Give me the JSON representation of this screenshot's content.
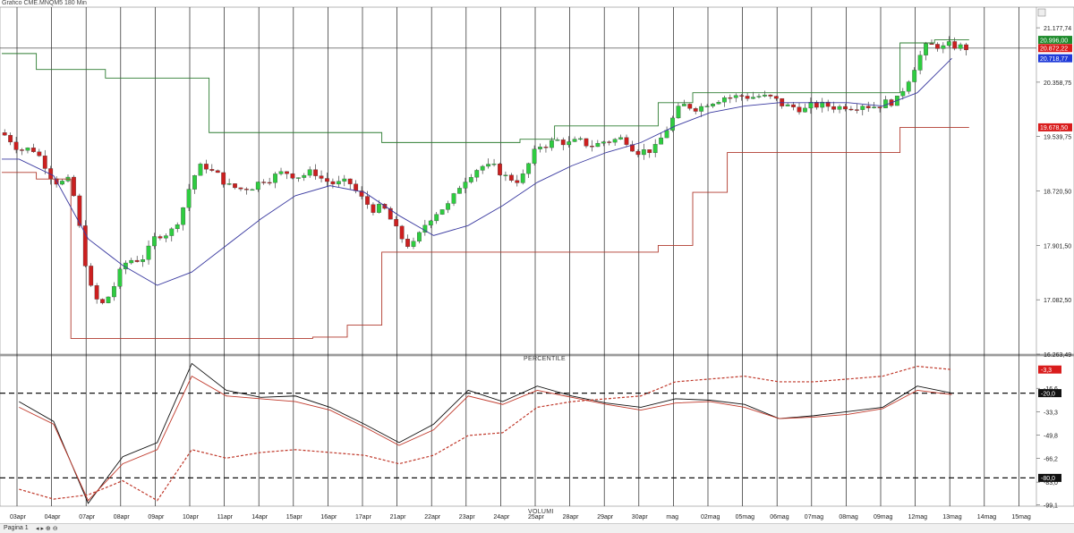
{
  "window": {
    "title": "Grafico CME.MNQM5 180 Min",
    "page_label": "Pagina 1"
  },
  "panels": {
    "oscillator_label": "PERCENTILE",
    "volume_label": "VOLUMI"
  },
  "colors": {
    "up_candle": "#2ecc40",
    "down_candle": "#cc1f1f",
    "upper_channel": "#2e7d32",
    "lower_channel": "#b03a2e",
    "moving_average": "#3a3aa0",
    "badge_green": "#1e8b2c",
    "badge_red": "#d91c1c",
    "badge_blue": "#1f3ad9"
  },
  "chart_data": [
    {
      "type": "candlestick",
      "symbol": "CME.MNQM5",
      "timeframe": "180 Min",
      "x_labels": [
        "03apr",
        "04apr",
        "07apr",
        "08apr",
        "09apr",
        "10apr",
        "11apr",
        "14apr",
        "15apr",
        "16apr",
        "17apr",
        "21apr",
        "22apr",
        "23apr",
        "24apr",
        "25apr",
        "28apr",
        "29apr",
        "30apr",
        "mag",
        "02mag",
        "05mag",
        "06mag",
        "07mag",
        "08mag",
        "09mag",
        "12mag",
        "13mag",
        "14mag",
        "15mag"
      ],
      "y_ticks": [
        "21.177,74",
        "20.358,75",
        "19.539,75",
        "18.720,50",
        "17.901,50",
        "17.082,50",
        "16.263,49"
      ],
      "ylim": [
        16263.49,
        21300
      ],
      "price_badges": [
        {
          "label": "20.996,00",
          "value": 20996,
          "color": "green"
        },
        {
          "label": "20.872,22",
          "value": 20872.22,
          "color": "red"
        },
        {
          "label": "20.718,77",
          "value": 20718.77,
          "color": "blue"
        },
        {
          "label": "19.678,50",
          "value": 19678.5,
          "color": "red"
        }
      ],
      "session_closes": [
        19350,
        18850,
        17000,
        17700,
        18120,
        19100,
        18750,
        18950,
        18980,
        18820,
        18450,
        17900,
        18500,
        19100,
        18900,
        19450,
        19430,
        19500,
        19350,
        20000,
        20150,
        20150,
        19980,
        20000,
        20050,
        20080,
        20900,
        20880
      ],
      "upper_channel": [
        20790,
        20550,
        20550,
        20420,
        20420,
        20420,
        19600,
        19600,
        19600,
        19600,
        19600,
        19450,
        19450,
        19450,
        19450,
        19500,
        19700,
        19700,
        19700,
        20050,
        20200,
        20200,
        20200,
        20200,
        20200,
        20200,
        20950,
        20996
      ],
      "lower_channel": [
        19000,
        18900,
        16500,
        16500,
        16500,
        16500,
        16500,
        16500,
        16500,
        16520,
        16700,
        17800,
        17800,
        17800,
        17800,
        17800,
        17800,
        17800,
        17800,
        17900,
        18700,
        19300,
        19300,
        19300,
        19300,
        19300,
        19678.5,
        19678.5
      ],
      "moving_average": [
        19200,
        18950,
        18000,
        17600,
        17300,
        17500,
        17900,
        18300,
        18650,
        18800,
        18700,
        18350,
        18050,
        18200,
        18500,
        18850,
        19100,
        19300,
        19450,
        19700,
        19900,
        20000,
        20050,
        20050,
        20050,
        20000,
        20200,
        20718.77
      ]
    },
    {
      "type": "line",
      "name": "PERCENTILE",
      "y_ticks": [
        "-16,6",
        "-33,3",
        "-49,8",
        "-66,2",
        "-83,0",
        "-99,1"
      ],
      "ylim": [
        -100,
        0
      ],
      "levels": [
        {
          "label": "-20,0",
          "value": -20
        },
        {
          "label": "-80,0",
          "value": -80
        }
      ],
      "badges": [
        {
          "label": "-3,3",
          "value": -3.3,
          "color": "red"
        },
        {
          "label": "-20,0",
          "value": -20,
          "color": "black"
        },
        {
          "label": "-80,0",
          "value": -80,
          "color": "black"
        }
      ],
      "series_fast": [
        -26,
        -40,
        -98,
        -65,
        -55,
        1,
        -18,
        -23,
        -22,
        -30,
        -42,
        -55,
        -42,
        -18,
        -26,
        -15,
        -22,
        -27,
        -30,
        -24,
        -25,
        -28,
        -38,
        -36,
        -33,
        -30,
        -15,
        -20
      ],
      "series_slow": [
        -30,
        -42,
        -96,
        -70,
        -60,
        -8,
        -22,
        -24,
        -26,
        -32,
        -44,
        -57,
        -46,
        -22,
        -28,
        -18,
        -23,
        -28,
        -32,
        -27,
        -26,
        -30,
        -38,
        -37,
        -35,
        -31,
        -18,
        -21
      ],
      "series_dotted": [
        -88,
        -95,
        -92,
        -82,
        -96,
        -60,
        -66,
        -62,
        -60,
        -62,
        -64,
        -70,
        -64,
        -50,
        -48,
        -30,
        -26,
        -24,
        -22,
        -12,
        -10,
        -8,
        -12,
        -12,
        -10,
        -8,
        -1,
        -3.3
      ]
    }
  ]
}
